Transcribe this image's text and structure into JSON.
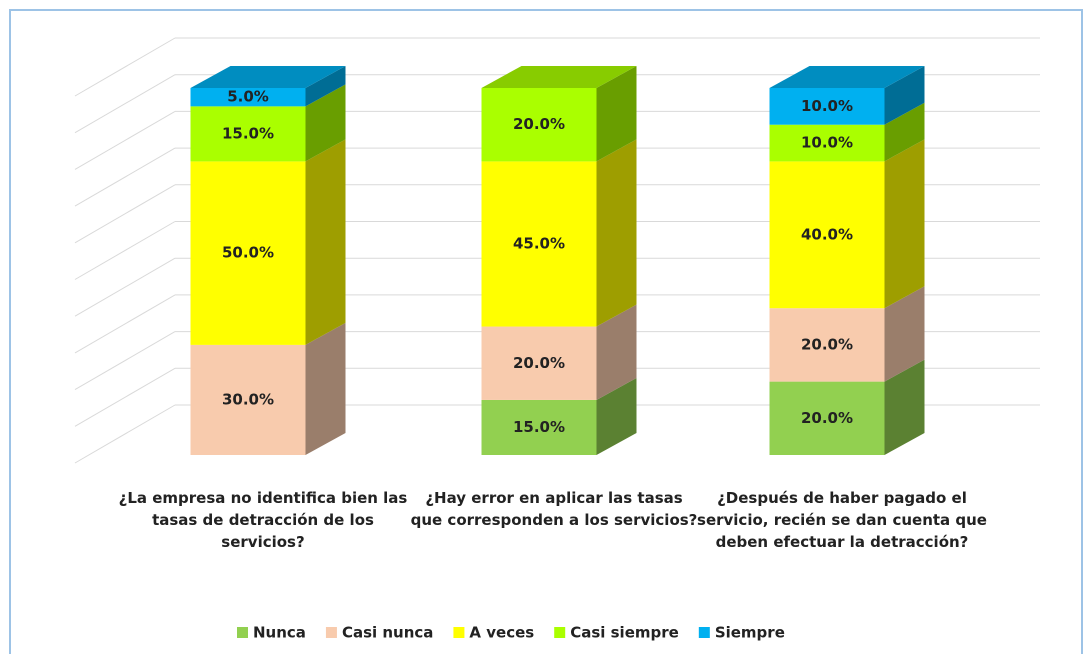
{
  "chart_data": {
    "type": "bar3d_stacked",
    "categories": [
      "¿La empresa no identifica bien las tasas de detracción de los servicios?",
      "¿Hay error en aplicar las tasas que corresponden a los servicios?",
      "¿Después de haber pagado el servicio, recién se dan cuenta que deben efectuar la detracción?"
    ],
    "series": [
      {
        "name": "Nunca",
        "color": "#92d050",
        "values": [
          0,
          15,
          20
        ],
        "value_labels": [
          null,
          "15.0%",
          "20.0%"
        ]
      },
      {
        "name": "Casi nunca",
        "color": "#f8cbad",
        "values": [
          30,
          20,
          20
        ],
        "value_labels": [
          "30.0%",
          "20.0%",
          "20.0%"
        ]
      },
      {
        "name": "A veces",
        "color": "#ffff00",
        "values": [
          50,
          45,
          40
        ],
        "value_labels": [
          "50.0%",
          "45.0%",
          "40.0%"
        ]
      },
      {
        "name": "Casi siempre",
        "color": "#aaff00",
        "values": [
          15,
          20,
          10
        ],
        "value_labels": [
          "15.0%",
          "20.0%",
          "10.0%"
        ]
      },
      {
        "name": "Siempre",
        "color": "#00b0f0",
        "values": [
          5,
          0,
          10
        ],
        "value_labels": [
          "5.0%",
          null,
          "10.0%"
        ]
      }
    ],
    "ylim": [
      0,
      100
    ],
    "yticks": [
      0,
      10,
      20,
      30,
      40,
      50,
      60,
      70,
      80,
      90,
      100
    ],
    "grid": true,
    "legend": "bottom"
  }
}
